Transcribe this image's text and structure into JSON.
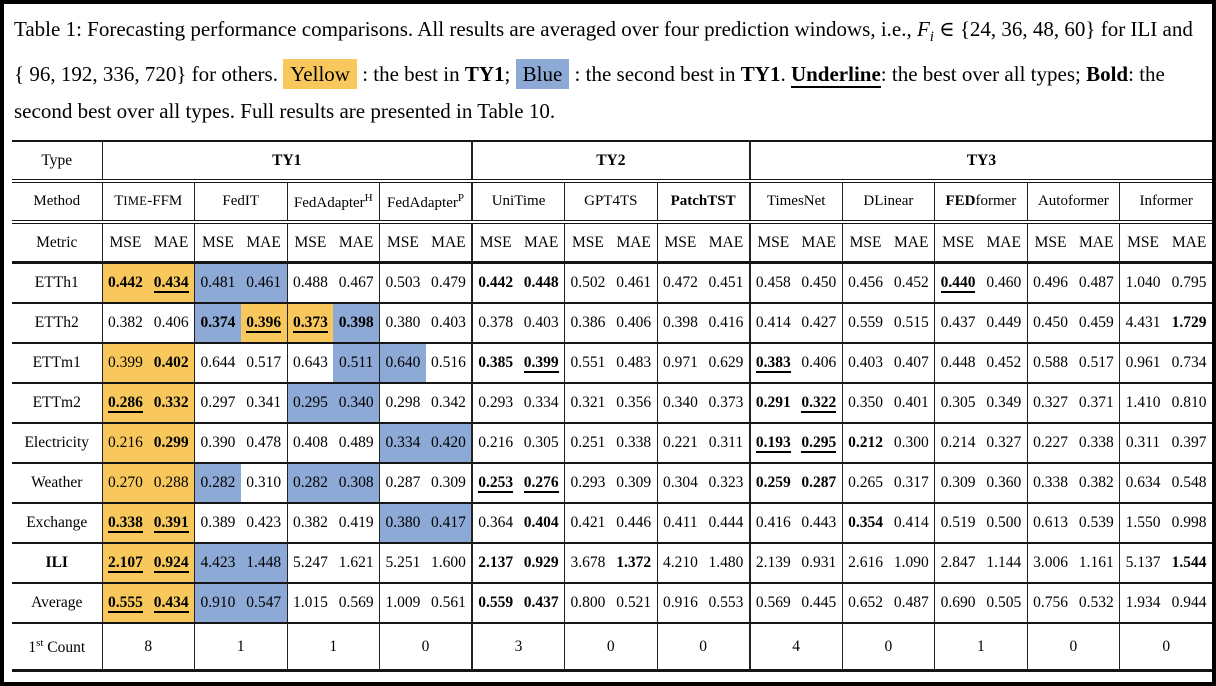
{
  "caption": {
    "segments": [
      {
        "t": "Table 1: Forecasting performance comparisons. All results are averaged over four prediction windows, i.e., "
      },
      {
        "t": "F",
        "italic": true
      },
      {
        "t": "i",
        "sub": true,
        "italic": true
      },
      {
        "t": " ∈ {24, 36, 48, 60} for ILI and { 96, 192, 336, 720} for others.  "
      },
      {
        "t": "Yellow",
        "hl": "y"
      },
      {
        "t": " : the best in "
      },
      {
        "t": "TY1",
        "bold": true
      },
      {
        "t": ";  "
      },
      {
        "t": "Blue",
        "hl": "b"
      },
      {
        "t": " : the second best in "
      },
      {
        "t": "TY1",
        "bold": true
      },
      {
        "t": ". "
      },
      {
        "t": "Underline",
        "bold": true,
        "u": true
      },
      {
        "t": ": the best over all types; "
      },
      {
        "t": "Bold",
        "bold": true
      },
      {
        "t": ": the second best over all types. Full results are presented in Table 10."
      }
    ]
  },
  "highlight_colors": {
    "best_ty1": "#F8C85C",
    "second_best_ty1": "#8DA9D6"
  },
  "table": {
    "labels": {
      "type": "Type",
      "method": "Method",
      "metric": "Metric",
      "mse": "MSE",
      "mae": "MAE"
    },
    "groups": [
      {
        "label": "TY1",
        "span": 8
      },
      {
        "label": "TY2",
        "span": 6
      },
      {
        "label": "TY3",
        "span": 10
      }
    ],
    "methods": [
      {
        "parts": [
          {
            "t": "T"
          },
          {
            "t": "IME",
            "small": true
          },
          {
            "t": "-FFM"
          }
        ]
      },
      {
        "parts": [
          {
            "t": "FedIT"
          }
        ]
      },
      {
        "parts": [
          {
            "t": "FedAdapter"
          },
          {
            "t": "H",
            "sup": true
          }
        ]
      },
      {
        "parts": [
          {
            "t": "FedAdapter"
          },
          {
            "t": "P",
            "sup": true
          }
        ]
      },
      {
        "parts": [
          {
            "t": "UniTime"
          }
        ]
      },
      {
        "parts": [
          {
            "t": "GPT4TS"
          }
        ]
      },
      {
        "parts": [
          {
            "t": "PatchTST",
            "bold": true
          }
        ]
      },
      {
        "parts": [
          {
            "t": "TimesNet"
          }
        ]
      },
      {
        "parts": [
          {
            "t": "DLinear"
          }
        ]
      },
      {
        "parts": [
          {
            "t": "FED",
            "bold": true
          },
          {
            "t": "former"
          }
        ]
      },
      {
        "parts": [
          {
            "t": "Autoformer"
          }
        ]
      },
      {
        "parts": [
          {
            "t": "Informer"
          }
        ]
      }
    ],
    "rows": [
      {
        "label": "ETTh1",
        "cells": [
          {
            "v": "0.442",
            "b": true,
            "h": "y"
          },
          {
            "v": "0.434",
            "b": true,
            "u": true,
            "h": "y"
          },
          {
            "v": "0.481",
            "h": "b"
          },
          {
            "v": "0.461",
            "h": "b"
          },
          {
            "v": "0.488"
          },
          {
            "v": "0.467"
          },
          {
            "v": "0.503"
          },
          {
            "v": "0.479"
          },
          {
            "v": "0.442",
            "b": true
          },
          {
            "v": "0.448",
            "b": true
          },
          {
            "v": "0.502"
          },
          {
            "v": "0.461"
          },
          {
            "v": "0.472"
          },
          {
            "v": "0.451"
          },
          {
            "v": "0.458"
          },
          {
            "v": "0.450"
          },
          {
            "v": "0.456"
          },
          {
            "v": "0.452"
          },
          {
            "v": "0.440",
            "b": true,
            "u": true
          },
          {
            "v": "0.460"
          },
          {
            "v": "0.496"
          },
          {
            "v": "0.487"
          },
          {
            "v": "1.040"
          },
          {
            "v": "0.795"
          }
        ]
      },
      {
        "label": "ETTh2",
        "cells": [
          {
            "v": "0.382"
          },
          {
            "v": "0.406"
          },
          {
            "v": "0.374",
            "b": true,
            "h": "b"
          },
          {
            "v": "0.396",
            "b": true,
            "u": true,
            "h": "y"
          },
          {
            "v": "0.373",
            "b": true,
            "u": true,
            "h": "y"
          },
          {
            "v": "0.398",
            "b": true,
            "h": "b"
          },
          {
            "v": "0.380"
          },
          {
            "v": "0.403"
          },
          {
            "v": "0.378"
          },
          {
            "v": "0.403"
          },
          {
            "v": "0.386"
          },
          {
            "v": "0.406"
          },
          {
            "v": "0.398"
          },
          {
            "v": "0.416"
          },
          {
            "v": "0.414"
          },
          {
            "v": "0.427"
          },
          {
            "v": "0.559"
          },
          {
            "v": "0.515"
          },
          {
            "v": "0.437"
          },
          {
            "v": "0.449"
          },
          {
            "v": "0.450"
          },
          {
            "v": "0.459"
          },
          {
            "v": "4.431"
          },
          {
            "v": "1.729",
            "b": true
          }
        ]
      },
      {
        "label": "ETTm1",
        "cells": [
          {
            "v": "0.399",
            "h": "y"
          },
          {
            "v": "0.402",
            "b": true,
            "h": "y"
          },
          {
            "v": "0.644"
          },
          {
            "v": "0.517"
          },
          {
            "v": "0.643"
          },
          {
            "v": "0.511",
            "h": "b"
          },
          {
            "v": "0.640",
            "h": "b"
          },
          {
            "v": "0.516"
          },
          {
            "v": "0.385",
            "b": true
          },
          {
            "v": "0.399",
            "b": true,
            "u": true
          },
          {
            "v": "0.551"
          },
          {
            "v": "0.483"
          },
          {
            "v": "0.971"
          },
          {
            "v": "0.629"
          },
          {
            "v": "0.383",
            "b": true,
            "u": true
          },
          {
            "v": "0.406"
          },
          {
            "v": "0.403"
          },
          {
            "v": "0.407"
          },
          {
            "v": "0.448"
          },
          {
            "v": "0.452"
          },
          {
            "v": "0.588"
          },
          {
            "v": "0.517"
          },
          {
            "v": "0.961"
          },
          {
            "v": "0.734"
          }
        ]
      },
      {
        "label": "ETTm2",
        "cells": [
          {
            "v": "0.286",
            "b": true,
            "u": true,
            "h": "y"
          },
          {
            "v": "0.332",
            "b": true,
            "h": "y"
          },
          {
            "v": "0.297"
          },
          {
            "v": "0.341"
          },
          {
            "v": "0.295",
            "h": "b"
          },
          {
            "v": "0.340",
            "h": "b"
          },
          {
            "v": "0.298"
          },
          {
            "v": "0.342"
          },
          {
            "v": "0.293"
          },
          {
            "v": "0.334"
          },
          {
            "v": "0.321"
          },
          {
            "v": "0.356"
          },
          {
            "v": "0.340"
          },
          {
            "v": "0.373"
          },
          {
            "v": "0.291",
            "b": true
          },
          {
            "v": "0.322",
            "b": true,
            "u": true
          },
          {
            "v": "0.350"
          },
          {
            "v": "0.401"
          },
          {
            "v": "0.305"
          },
          {
            "v": "0.349"
          },
          {
            "v": "0.327"
          },
          {
            "v": "0.371"
          },
          {
            "v": "1.410"
          },
          {
            "v": "0.810"
          }
        ]
      },
      {
        "label": "Electricity",
        "cells": [
          {
            "v": "0.216",
            "h": "y"
          },
          {
            "v": "0.299",
            "b": true,
            "h": "y"
          },
          {
            "v": "0.390"
          },
          {
            "v": "0.478"
          },
          {
            "v": "0.408"
          },
          {
            "v": "0.489"
          },
          {
            "v": "0.334",
            "h": "b"
          },
          {
            "v": "0.420",
            "h": "b"
          },
          {
            "v": "0.216"
          },
          {
            "v": "0.305"
          },
          {
            "v": "0.251"
          },
          {
            "v": "0.338"
          },
          {
            "v": "0.221"
          },
          {
            "v": "0.311"
          },
          {
            "v": "0.193",
            "b": true,
            "u": true
          },
          {
            "v": "0.295",
            "b": true,
            "u": true
          },
          {
            "v": "0.212",
            "b": true
          },
          {
            "v": "0.300"
          },
          {
            "v": "0.214"
          },
          {
            "v": "0.327"
          },
          {
            "v": "0.227"
          },
          {
            "v": "0.338"
          },
          {
            "v": "0.311"
          },
          {
            "v": "0.397"
          }
        ]
      },
      {
        "label": "Weather",
        "cells": [
          {
            "v": "0.270",
            "h": "y"
          },
          {
            "v": "0.288",
            "h": "y"
          },
          {
            "v": "0.282",
            "h": "b"
          },
          {
            "v": "0.310"
          },
          {
            "v": "0.282",
            "h": "b"
          },
          {
            "v": "0.308",
            "h": "b"
          },
          {
            "v": "0.287"
          },
          {
            "v": "0.309"
          },
          {
            "v": "0.253",
            "b": true,
            "u": true
          },
          {
            "v": "0.276",
            "b": true,
            "u": true
          },
          {
            "v": "0.293"
          },
          {
            "v": "0.309"
          },
          {
            "v": "0.304"
          },
          {
            "v": "0.323"
          },
          {
            "v": "0.259",
            "b": true
          },
          {
            "v": "0.287",
            "b": true
          },
          {
            "v": "0.265"
          },
          {
            "v": "0.317"
          },
          {
            "v": "0.309"
          },
          {
            "v": "0.360"
          },
          {
            "v": "0.338"
          },
          {
            "v": "0.382"
          },
          {
            "v": "0.634"
          },
          {
            "v": "0.548"
          }
        ]
      },
      {
        "label": "Exchange",
        "cells": [
          {
            "v": "0.338",
            "b": true,
            "u": true,
            "h": "y"
          },
          {
            "v": "0.391",
            "b": true,
            "u": true,
            "h": "y"
          },
          {
            "v": "0.389"
          },
          {
            "v": "0.423"
          },
          {
            "v": "0.382"
          },
          {
            "v": "0.419"
          },
          {
            "v": "0.380",
            "h": "b"
          },
          {
            "v": "0.417",
            "h": "b"
          },
          {
            "v": "0.364"
          },
          {
            "v": "0.404",
            "b": true
          },
          {
            "v": "0.421"
          },
          {
            "v": "0.446"
          },
          {
            "v": "0.411"
          },
          {
            "v": "0.444"
          },
          {
            "v": "0.416"
          },
          {
            "v": "0.443"
          },
          {
            "v": "0.354",
            "b": true
          },
          {
            "v": "0.414"
          },
          {
            "v": "0.519"
          },
          {
            "v": "0.500"
          },
          {
            "v": "0.613"
          },
          {
            "v": "0.539"
          },
          {
            "v": "1.550"
          },
          {
            "v": "0.998"
          }
        ]
      },
      {
        "label": "ILI",
        "bold_label": true,
        "cells": [
          {
            "v": "2.107",
            "b": true,
            "u": true,
            "h": "y"
          },
          {
            "v": "0.924",
            "b": true,
            "u": true,
            "h": "y"
          },
          {
            "v": "4.423",
            "h": "b"
          },
          {
            "v": "1.448",
            "h": "b"
          },
          {
            "v": "5.247"
          },
          {
            "v": "1.621"
          },
          {
            "v": "5.251"
          },
          {
            "v": "1.600"
          },
          {
            "v": "2.137",
            "b": true
          },
          {
            "v": "0.929",
            "b": true
          },
          {
            "v": "3.678"
          },
          {
            "v": "1.372",
            "b": true
          },
          {
            "v": "4.210"
          },
          {
            "v": "1.480"
          },
          {
            "v": "2.139"
          },
          {
            "v": "0.931"
          },
          {
            "v": "2.616"
          },
          {
            "v": "1.090"
          },
          {
            "v": "2.847"
          },
          {
            "v": "1.144"
          },
          {
            "v": "3.006"
          },
          {
            "v": "1.161"
          },
          {
            "v": "5.137"
          },
          {
            "v": "1.544",
            "b": true
          }
        ]
      },
      {
        "label": "Average",
        "cells": [
          {
            "v": "0.555",
            "b": true,
            "u": true,
            "h": "y"
          },
          {
            "v": "0.434",
            "b": true,
            "u": true,
            "h": "y"
          },
          {
            "v": "0.910",
            "h": "b"
          },
          {
            "v": "0.547",
            "h": "b"
          },
          {
            "v": "1.015"
          },
          {
            "v": "0.569"
          },
          {
            "v": "1.009"
          },
          {
            "v": "0.561"
          },
          {
            "v": "0.559",
            "b": true
          },
          {
            "v": "0.437",
            "b": true
          },
          {
            "v": "0.800"
          },
          {
            "v": "0.521"
          },
          {
            "v": "0.916"
          },
          {
            "v": "0.553"
          },
          {
            "v": "0.569"
          },
          {
            "v": "0.445"
          },
          {
            "v": "0.652"
          },
          {
            "v": "0.487"
          },
          {
            "v": "0.690"
          },
          {
            "v": "0.505"
          },
          {
            "v": "0.756"
          },
          {
            "v": "0.532"
          },
          {
            "v": "1.934"
          },
          {
            "v": "0.944"
          }
        ]
      }
    ],
    "count_row": {
      "label_parts": [
        {
          "t": "1"
        },
        {
          "t": "st",
          "sup": true
        },
        {
          "t": " Count"
        }
      ],
      "values": [
        "8",
        "1",
        "1",
        "0",
        "3",
        "0",
        "0",
        "4",
        "0",
        "1",
        "0",
        "0"
      ]
    }
  }
}
